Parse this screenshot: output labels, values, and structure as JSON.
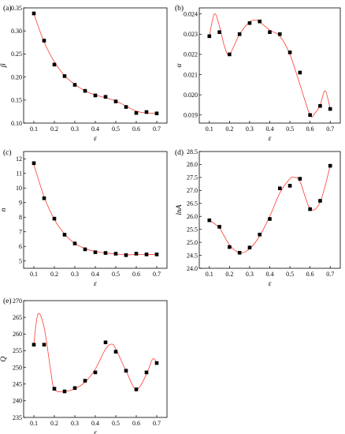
{
  "chart_data": [
    {
      "type": "scatter",
      "panel_label": "(a)",
      "xlabel": "ε",
      "ylabel": "β",
      "xlim": [
        0.05,
        0.75
      ],
      "ylim": [
        0.1,
        0.35
      ],
      "xticks": [
        0.1,
        0.2,
        0.3,
        0.4,
        0.5,
        0.6,
        0.7
      ],
      "yticks": [
        0.1,
        0.15,
        0.2,
        0.25,
        0.3,
        0.35
      ],
      "tick_decimals_x": 1,
      "tick_decimals_y": 2,
      "marker_color": "#000000",
      "fit_color": "#ff3b30",
      "series": [
        {
          "x": [
            0.1,
            0.15,
            0.2,
            0.25,
            0.3,
            0.35,
            0.4,
            0.45,
            0.5,
            0.55,
            0.6,
            0.65,
            0.7
          ],
          "y": [
            0.338,
            0.279,
            0.227,
            0.202,
            0.183,
            0.17,
            0.16,
            0.157,
            0.147,
            0.135,
            0.122,
            0.124,
            0.121
          ]
        }
      ],
      "fit_curve": {
        "x": [
          0.1,
          0.15,
          0.2,
          0.25,
          0.3,
          0.35,
          0.4,
          0.45,
          0.5,
          0.55,
          0.6,
          0.65,
          0.7
        ],
        "y": [
          0.337,
          0.276,
          0.233,
          0.203,
          0.184,
          0.17,
          0.161,
          0.155,
          0.148,
          0.137,
          0.126,
          0.122,
          0.121
        ]
      }
    },
    {
      "type": "scatter",
      "panel_label": "(b)",
      "xlabel": "ε",
      "ylabel": "α",
      "xlim": [
        0.05,
        0.75
      ],
      "ylim": [
        0.0186,
        0.0243
      ],
      "xticks": [
        0.1,
        0.2,
        0.3,
        0.4,
        0.5,
        0.6,
        0.7
      ],
      "yticks": [
        0.019,
        0.02,
        0.021,
        0.022,
        0.023,
        0.024
      ],
      "tick_decimals_x": 1,
      "tick_decimals_y": 3,
      "marker_color": "#000000",
      "fit_color": "#ff3b30",
      "series": [
        {
          "x": [
            0.1,
            0.15,
            0.2,
            0.25,
            0.3,
            0.35,
            0.4,
            0.45,
            0.5,
            0.55,
            0.6,
            0.65,
            0.7
          ],
          "y": [
            0.0229,
            0.0231,
            0.022,
            0.023,
            0.02355,
            0.02363,
            0.0231,
            0.023,
            0.0221,
            0.0211,
            0.019,
            0.01945,
            0.0193
          ]
        }
      ],
      "fit_curve": {
        "x": [
          0.1,
          0.125,
          0.15,
          0.175,
          0.2,
          0.25,
          0.3,
          0.33,
          0.35,
          0.4,
          0.45,
          0.5,
          0.55,
          0.6,
          0.625,
          0.65,
          0.675,
          0.7
        ],
        "y": [
          0.0229,
          0.024,
          0.0234,
          0.0224,
          0.022,
          0.023,
          0.0236,
          0.0237,
          0.0236,
          0.0232,
          0.0229,
          0.022,
          0.0205,
          0.019,
          0.0191,
          0.0195,
          0.0202,
          0.0193
        ]
      }
    },
    {
      "type": "scatter",
      "panel_label": "(c)",
      "xlabel": "ε",
      "ylabel": "n",
      "xlim": [
        0.05,
        0.75
      ],
      "ylim": [
        4.5,
        12.5
      ],
      "xticks": [
        0.1,
        0.2,
        0.3,
        0.4,
        0.5,
        0.6,
        0.7
      ],
      "yticks": [
        5,
        6,
        7,
        8,
        9,
        10,
        11,
        12
      ],
      "tick_decimals_x": 1,
      "tick_decimals_y": 0,
      "marker_color": "#000000",
      "fit_color": "#ff3b30",
      "series": [
        {
          "x": [
            0.1,
            0.15,
            0.2,
            0.25,
            0.3,
            0.35,
            0.4,
            0.45,
            0.5,
            0.55,
            0.6,
            0.65,
            0.7
          ],
          "y": [
            11.7,
            9.3,
            7.9,
            6.8,
            6.2,
            5.8,
            5.6,
            5.55,
            5.5,
            5.4,
            5.5,
            5.45,
            5.45
          ]
        }
      ],
      "fit_curve": {
        "x": [
          0.1,
          0.15,
          0.2,
          0.25,
          0.3,
          0.35,
          0.4,
          0.45,
          0.5,
          0.55,
          0.6,
          0.65,
          0.7
        ],
        "y": [
          11.6,
          9.4,
          7.85,
          6.85,
          6.2,
          5.85,
          5.65,
          5.55,
          5.48,
          5.42,
          5.45,
          5.45,
          5.45
        ]
      }
    },
    {
      "type": "scatter",
      "panel_label": "(d)",
      "xlabel": "ε",
      "ylabel": "lnA",
      "xlim": [
        0.05,
        0.75
      ],
      "ylim": [
        24.0,
        28.5
      ],
      "xticks": [
        0.1,
        0.2,
        0.3,
        0.4,
        0.5,
        0.6,
        0.7
      ],
      "yticks": [
        24.0,
        24.5,
        25.0,
        25.5,
        26.0,
        26.5,
        27.0,
        27.5,
        28.0,
        28.5
      ],
      "tick_decimals_x": 1,
      "tick_decimals_y": 1,
      "marker_color": "#000000",
      "fit_color": "#ff3b30",
      "series": [
        {
          "x": [
            0.1,
            0.15,
            0.2,
            0.25,
            0.3,
            0.35,
            0.4,
            0.45,
            0.5,
            0.55,
            0.6,
            0.65,
            0.7
          ],
          "y": [
            25.85,
            25.6,
            24.82,
            24.6,
            24.8,
            25.3,
            25.9,
            27.08,
            27.18,
            27.45,
            26.28,
            26.6,
            27.95
          ]
        }
      ],
      "fit_curve": {
        "x": [
          0.1,
          0.15,
          0.2,
          0.25,
          0.3,
          0.35,
          0.4,
          0.45,
          0.5,
          0.52,
          0.55,
          0.6,
          0.65,
          0.7
        ],
        "y": [
          25.85,
          25.55,
          24.9,
          24.6,
          24.75,
          25.25,
          26.0,
          26.9,
          27.45,
          27.5,
          27.35,
          26.3,
          26.55,
          27.95
        ]
      }
    },
    {
      "type": "scatter",
      "panel_label": "(e)",
      "xlabel": "ε",
      "ylabel": "Q",
      "xlim": [
        0.05,
        0.75
      ],
      "ylim": [
        235,
        270
      ],
      "xticks": [
        0.1,
        0.2,
        0.3,
        0.4,
        0.5,
        0.6,
        0.7
      ],
      "yticks": [
        235,
        240,
        245,
        250,
        255,
        260,
        265,
        270
      ],
      "tick_decimals_x": 1,
      "tick_decimals_y": 0,
      "marker_color": "#000000",
      "fit_color": "#ff3b30",
      "series": [
        {
          "x": [
            0.1,
            0.15,
            0.2,
            0.25,
            0.3,
            0.35,
            0.4,
            0.45,
            0.5,
            0.55,
            0.6,
            0.65,
            0.7
          ],
          "y": [
            256.8,
            256.8,
            243.6,
            242.8,
            243.8,
            246.0,
            248.5,
            257.5,
            254.7,
            249.0,
            243.4,
            248.5,
            251.3
          ]
        }
      ],
      "fit_curve": {
        "x": [
          0.1,
          0.12,
          0.15,
          0.18,
          0.2,
          0.25,
          0.3,
          0.35,
          0.4,
          0.45,
          0.48,
          0.5,
          0.55,
          0.6,
          0.65,
          0.68,
          0.7
        ],
        "y": [
          257.0,
          266.0,
          262.0,
          250.0,
          243.5,
          242.8,
          243.6,
          245.6,
          249.5,
          255.5,
          257.0,
          255.5,
          249.0,
          243.4,
          248.0,
          252.5,
          251.3
        ]
      }
    }
  ]
}
